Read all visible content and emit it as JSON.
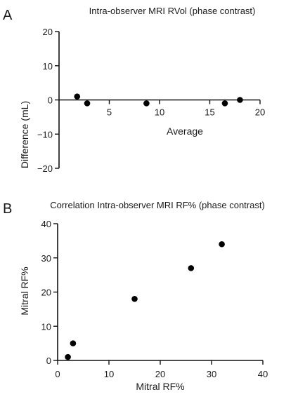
{
  "panels": [
    {
      "letter": "A"
    },
    {
      "letter": "B"
    }
  ],
  "chart_data": [
    {
      "type": "scatter",
      "title": "Intra-observer MRI RVol (phase contrast)",
      "xlabel": "Average",
      "ylabel": "Difference (mL)",
      "xlim": [
        0,
        20
      ],
      "ylim": [
        -20,
        20
      ],
      "xticks": [
        5,
        10,
        15,
        20
      ],
      "yticks": [
        20,
        10,
        0,
        -10,
        -20
      ],
      "tick_labels_x": [
        "5",
        "10",
        "15",
        "20"
      ],
      "tick_labels_y": [
        "20",
        "10",
        "0",
        "−10",
        "−20"
      ],
      "grid": false,
      "x": [
        1.8,
        2.8,
        8.7,
        16.5,
        18.0
      ],
      "y": [
        1.0,
        -1.0,
        -1.0,
        -1.0,
        0.0
      ]
    },
    {
      "type": "scatter",
      "title": "Correlation Intra-observer MRI RF% (phase contrast)",
      "xlabel": "Mitral RF%",
      "ylabel": "Mitral RF%",
      "xlim": [
        0,
        40
      ],
      "ylim": [
        0,
        40
      ],
      "xticks": [
        0,
        10,
        20,
        30,
        40
      ],
      "yticks": [
        40,
        30,
        20,
        10,
        0
      ],
      "tick_labels_x": [
        "0",
        "10",
        "20",
        "30",
        "40"
      ],
      "tick_labels_y": [
        "40",
        "30",
        "20",
        "10",
        "0"
      ],
      "grid": false,
      "x": [
        2,
        3,
        15,
        26,
        32
      ],
      "y": [
        1,
        5,
        18,
        27,
        34
      ]
    }
  ]
}
